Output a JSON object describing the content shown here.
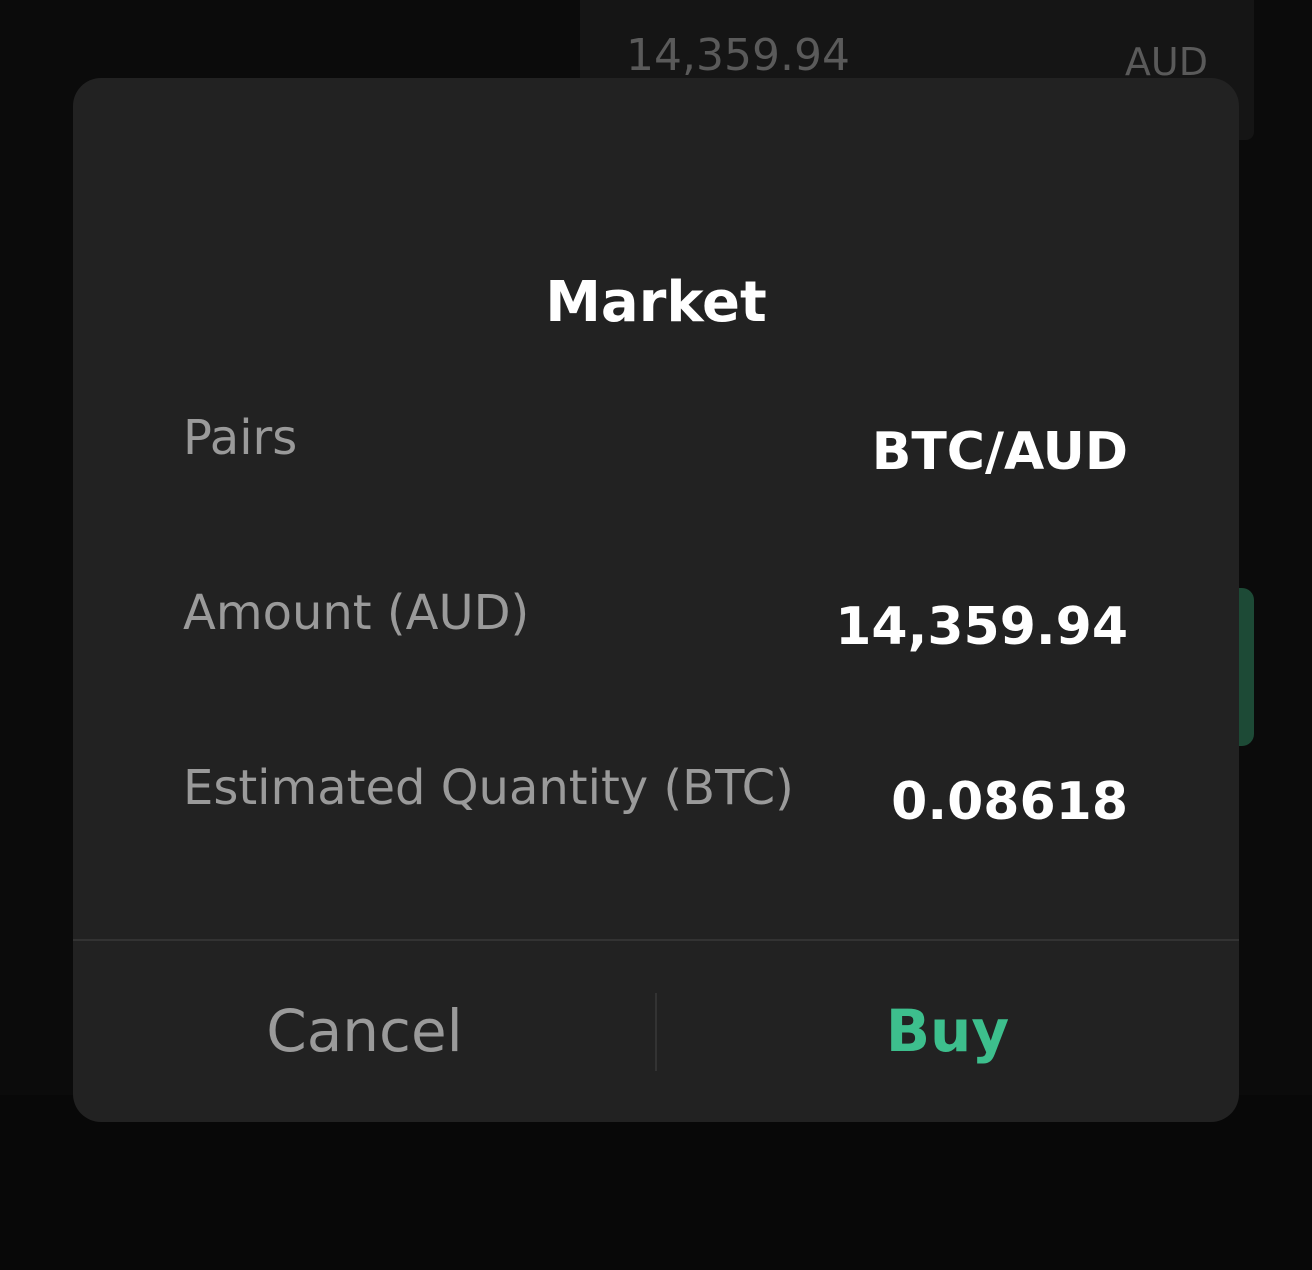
{
  "background": {
    "amount_field": {
      "value": "14,359.94",
      "unit": "AUD"
    }
  },
  "dialog": {
    "title": "Market",
    "rows": [
      {
        "label": "Pairs",
        "value": "BTC/AUD"
      },
      {
        "label": "Amount (AUD)",
        "value": "14,359.94"
      },
      {
        "label": "Estimated Quantity (BTC)",
        "value": "0.08618"
      }
    ],
    "buttons": {
      "cancel": "Cancel",
      "confirm": "Buy"
    }
  }
}
